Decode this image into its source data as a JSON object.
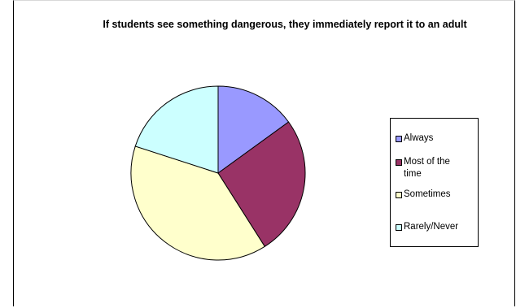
{
  "chart_data": {
    "type": "pie",
    "title": "If students see something dangerous, they immediately report it to an adult",
    "categories": [
      "Always",
      "Most of the time",
      "Sometimes",
      "Rarely/Never"
    ],
    "values": [
      15,
      26,
      39,
      20
    ],
    "colors": [
      "#9999ff",
      "#993366",
      "#ffffcc",
      "#ccffff"
    ],
    "slice_border_color": "#000000",
    "start_angle_deg": 0,
    "direction": "clockwise",
    "legend": {
      "placement": "right",
      "labels": [
        "Always",
        "Most of the time",
        "Sometimes",
        "Rarely/Never"
      ]
    }
  }
}
